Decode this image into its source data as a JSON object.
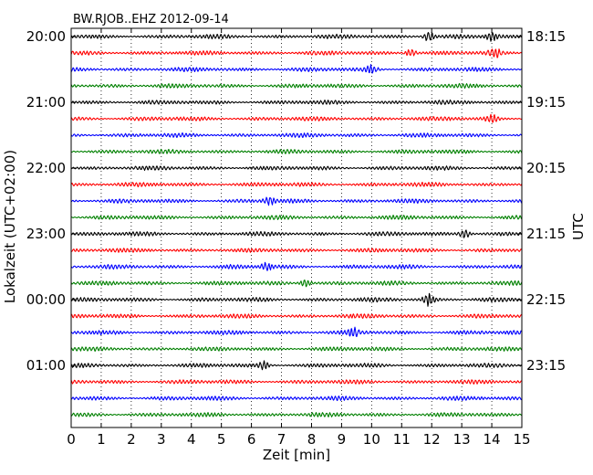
{
  "chart_data": {
    "type": "line",
    "title": "BW.RJOB..EHZ 2012-09-14",
    "xlabel": "Zeit  [min]",
    "ylabel_left": "Lokalzeit (UTC+02:00)",
    "ylabel_right": "UTC",
    "xlim": [
      0,
      15
    ],
    "x_ticks": [
      0,
      1,
      2,
      3,
      4,
      5,
      6,
      7,
      8,
      9,
      10,
      11,
      12,
      13,
      14,
      15
    ],
    "x_tick_labels": [
      "0",
      "1",
      "2",
      "3",
      "4",
      "5",
      "6",
      "7",
      "8",
      "9",
      "10",
      "11",
      "12",
      "13",
      "14",
      "15"
    ],
    "grid": "vertical-dotted",
    "trace_count": 24,
    "trace_colors": [
      "#000000",
      "#ff0000",
      "#0000ff",
      "#008000"
    ],
    "left_tick_labels": [
      {
        "trace": 0,
        "label": "20:00"
      },
      {
        "trace": 4,
        "label": "21:00"
      },
      {
        "trace": 8,
        "label": "22:00"
      },
      {
        "trace": 12,
        "label": "23:00"
      },
      {
        "trace": 16,
        "label": "00:00"
      },
      {
        "trace": 20,
        "label": "01:00"
      }
    ],
    "right_tick_labels": [
      {
        "trace": 0,
        "label": "18:15"
      },
      {
        "trace": 4,
        "label": "19:15"
      },
      {
        "trace": 8,
        "label": "20:15"
      },
      {
        "trace": 12,
        "label": "21:15"
      },
      {
        "trace": 16,
        "label": "22:15"
      },
      {
        "trace": 20,
        "label": "23:15"
      }
    ],
    "events": [
      {
        "trace": 0,
        "minute": 11.9,
        "amplitude": 1.6
      },
      {
        "trace": 0,
        "minute": 14.0,
        "amplitude": 1.3
      },
      {
        "trace": 1,
        "minute": 11.3,
        "amplitude": 1.2
      },
      {
        "trace": 1,
        "minute": 14.1,
        "amplitude": 1.5
      },
      {
        "trace": 2,
        "minute": 10.0,
        "amplitude": 1.2
      },
      {
        "trace": 5,
        "minute": 14.0,
        "amplitude": 1.1
      },
      {
        "trace": 10,
        "minute": 6.6,
        "amplitude": 1.2
      },
      {
        "trace": 12,
        "minute": 13.1,
        "amplitude": 1.4
      },
      {
        "trace": 14,
        "minute": 6.5,
        "amplitude": 1.2
      },
      {
        "trace": 15,
        "minute": 7.8,
        "amplitude": 1.2
      },
      {
        "trace": 16,
        "minute": 11.9,
        "amplitude": 1.9
      },
      {
        "trace": 18,
        "minute": 9.4,
        "amplitude": 1.3
      },
      {
        "trace": 20,
        "minute": 6.4,
        "amplitude": 1.2
      }
    ]
  }
}
